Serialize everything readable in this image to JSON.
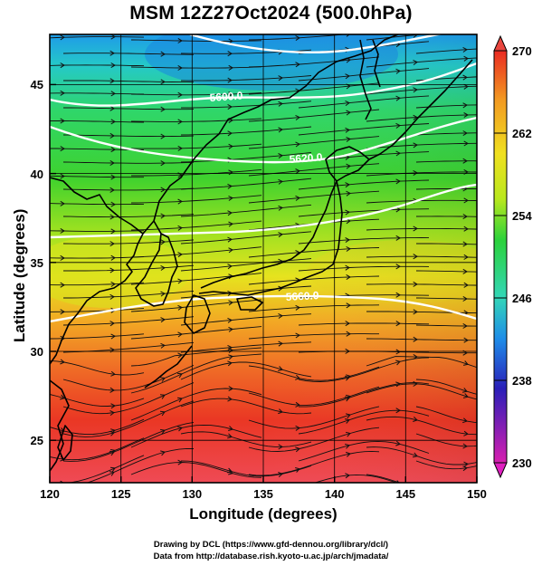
{
  "title": "MSM 12Z27Oct2024 (500.0hPa)",
  "x_axis": {
    "label": "Longitude (degrees)",
    "ticks": [
      "120",
      "125",
      "130",
      "135",
      "140",
      "145",
      "150"
    ],
    "range": [
      120,
      150
    ]
  },
  "y_axis": {
    "label": "Latitude  (degrees)",
    "ticks": [
      "25",
      "30",
      "35",
      "40",
      "45"
    ],
    "range": [
      22.4,
      47.6
    ]
  },
  "colorbar": {
    "labels": [
      "270",
      "262",
      "254",
      "246",
      "238",
      "230"
    ],
    "range": [
      230,
      270
    ],
    "colors": [
      "#d81fb0",
      "#2a1fb8",
      "#1e8ce8",
      "#33d6b8",
      "#2bd23b",
      "#b9e81d",
      "#f0e020",
      "#f29a22",
      "#ea2a22"
    ]
  },
  "contours": {
    "labels": [
      "5600.0",
      "5620.0",
      "5660.0"
    ],
    "color": "#ffffff"
  },
  "credits": {
    "line1": "Drawing by DCL (https://www.gfd-dennou.org/library/dcl/)",
    "line2": "Data from http://database.rish.kyoto-u.ac.jp/arch/jmadata/"
  }
}
